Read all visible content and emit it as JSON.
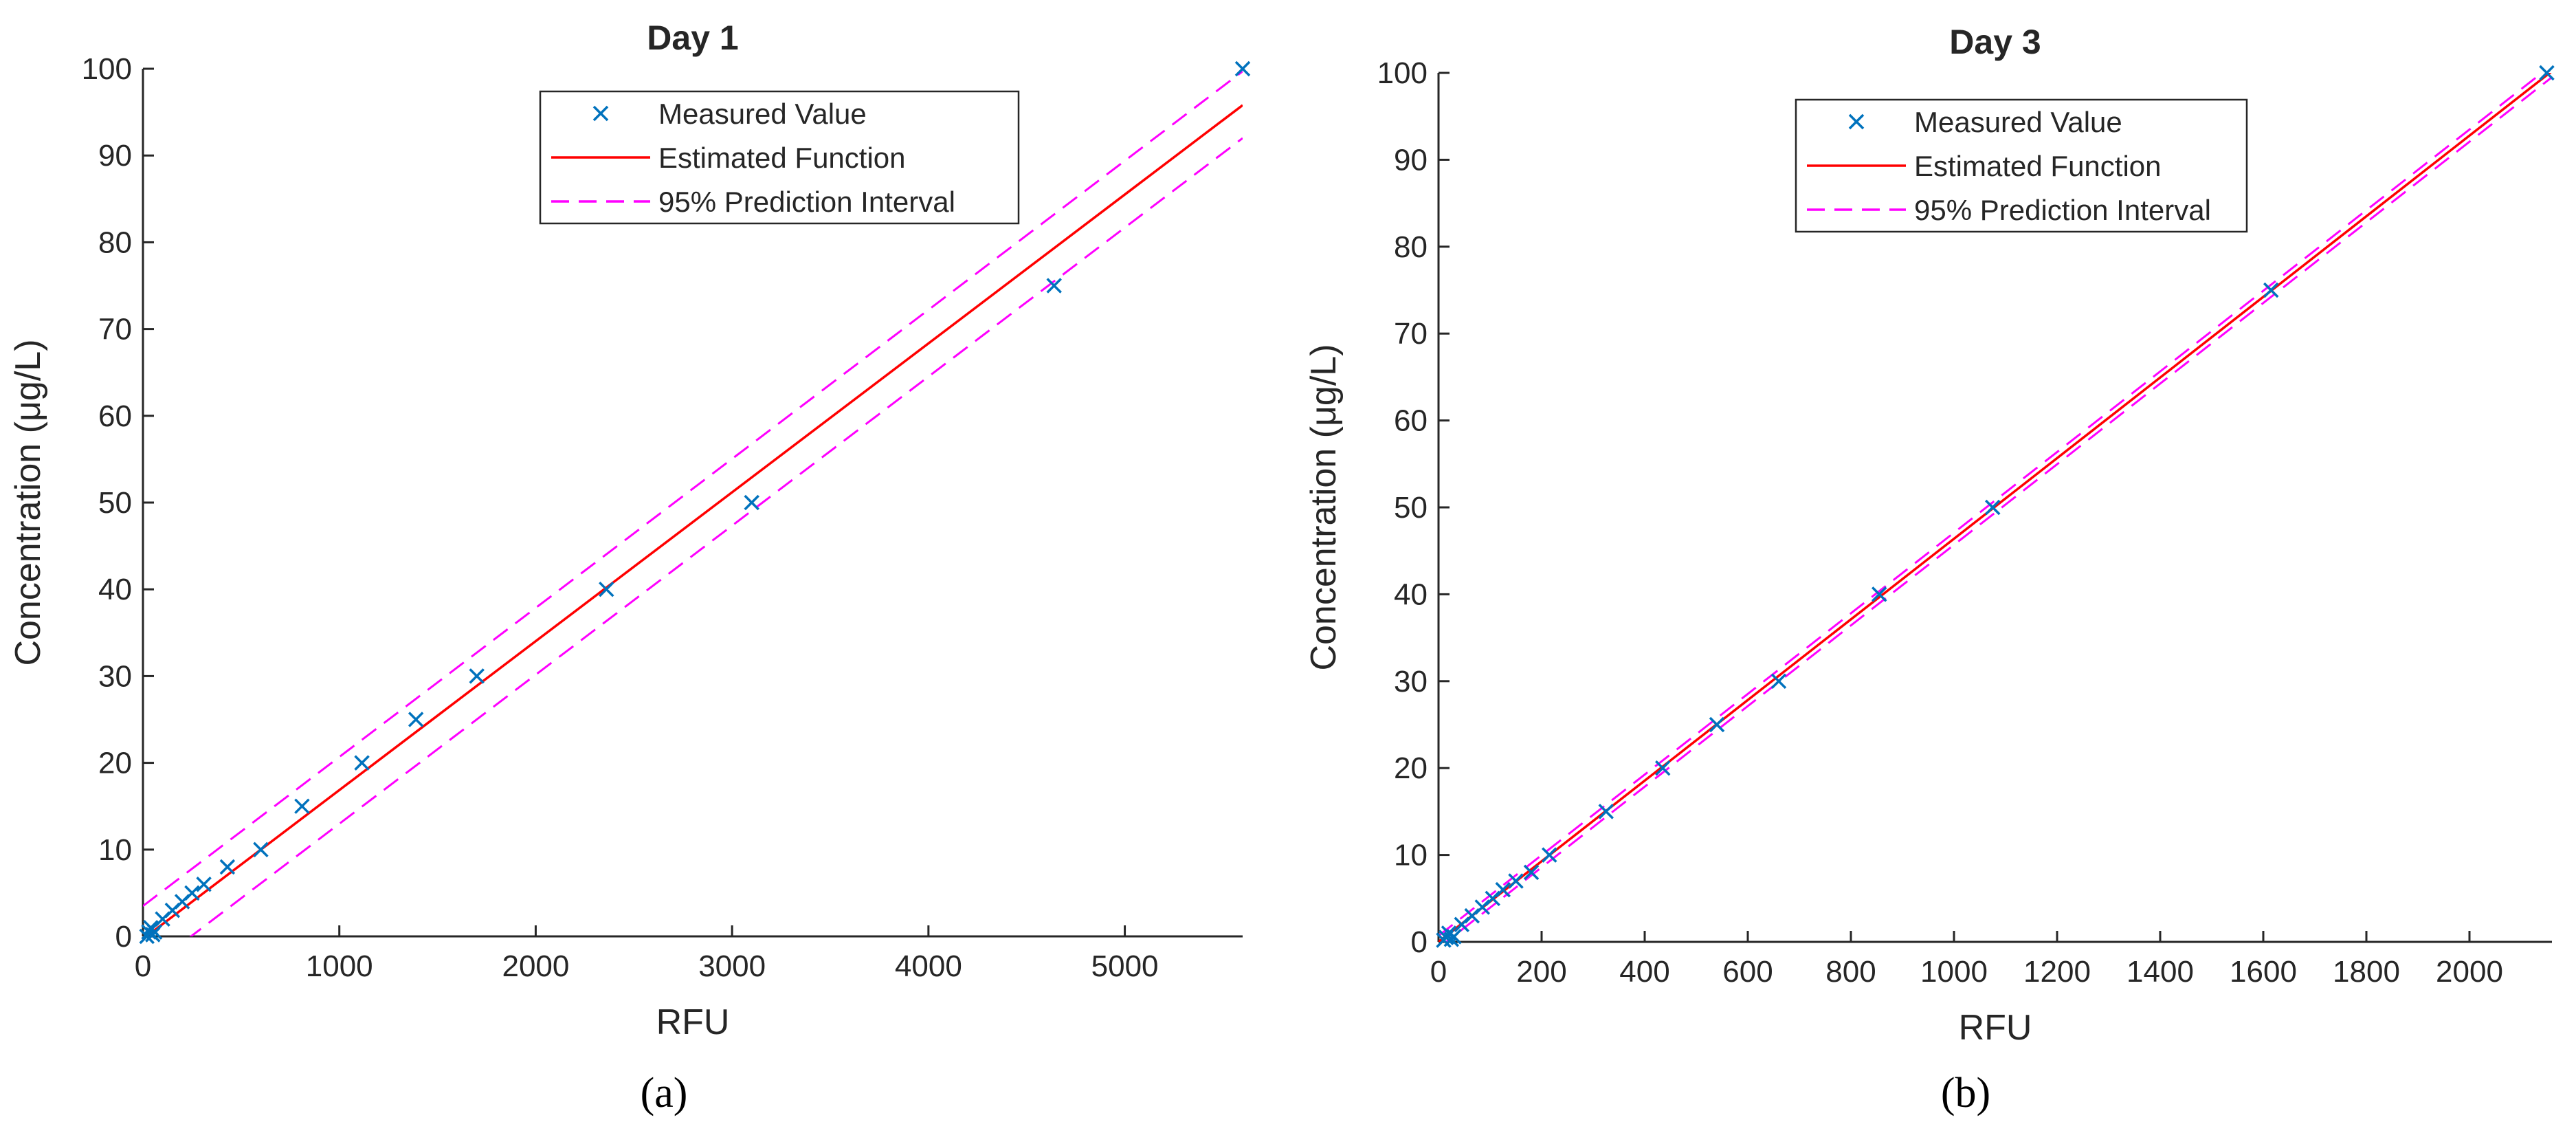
{
  "chart_data": [
    {
      "type": "scatter",
      "panel_label": "(a)",
      "title": "Day 1",
      "xlabel": "RFU",
      "ylabel": "Concentration (μg/L)",
      "xlim": [
        0,
        5600
      ],
      "ylim": [
        0,
        100
      ],
      "xticks": [
        0,
        1000,
        2000,
        3000,
        4000,
        5000
      ],
      "yticks": [
        0,
        10,
        20,
        30,
        40,
        50,
        60,
        70,
        80,
        90,
        100
      ],
      "legend_position": "top-center",
      "grid": false,
      "measured": {
        "name": "Measured Value",
        "color": "#0072BD",
        "x": [
          20,
          30,
          40,
          50,
          60,
          100,
          150,
          200,
          250,
          310,
          430,
          600,
          810,
          1115,
          1390,
          1700,
          2360,
          3100,
          4640,
          5600
        ],
        "y": [
          0,
          0.5,
          1,
          0.2,
          0.5,
          2,
          3,
          4,
          5,
          6,
          8,
          10,
          15,
          20,
          25,
          30,
          40,
          50,
          75,
          100
        ]
      },
      "estimated": {
        "name": "Estimated Function",
        "color": "#FF0000",
        "x": [
          0,
          5600
        ],
        "y": [
          -0.3,
          95.8
        ]
      },
      "prediction_interval": {
        "name": "95% Prediction Interval",
        "color": "#FF00FF",
        "upper": {
          "x": [
            0,
            5600
          ],
          "y": [
            3.5,
            99.7
          ]
        },
        "lower": {
          "x": [
            0,
            5600
          ],
          "y": [
            -4.2,
            92.0
          ]
        }
      }
    },
    {
      "type": "scatter",
      "panel_label": "(b)",
      "title": "Day 3",
      "xlabel": "RFU",
      "ylabel": "Concentration (μg/L)",
      "xlim": [
        0,
        2160
      ],
      "ylim": [
        0,
        100
      ],
      "xticks": [
        0,
        200,
        400,
        600,
        800,
        1000,
        1200,
        1400,
        1600,
        1800,
        2000
      ],
      "yticks": [
        0,
        10,
        20,
        30,
        40,
        50,
        60,
        70,
        80,
        90,
        100
      ],
      "legend_position": "top-center",
      "grid": false,
      "measured": {
        "name": "Measured Value",
        "color": "#0072BD",
        "x": [
          10,
          15,
          20,
          25,
          30,
          45,
          65,
          85,
          105,
          125,
          150,
          180,
          215,
          325,
          435,
          540,
          660,
          855,
          1075,
          1615,
          2150
        ],
        "y": [
          0.2,
          0.5,
          1,
          0.3,
          0.6,
          2,
          3,
          4,
          5,
          6,
          7,
          8,
          10,
          15,
          20,
          25,
          30,
          40,
          50,
          75,
          100
        ]
      },
      "estimated": {
        "name": "Estimated Function",
        "color": "#FF0000",
        "x": [
          0,
          2160
        ],
        "y": [
          0,
          100.2
        ]
      },
      "prediction_interval": {
        "name": "95% Prediction Interval",
        "color": "#FF00FF",
        "upper": {
          "x": [
            0,
            2160
          ],
          "y": [
            0.7,
            100.9
          ]
        },
        "lower": {
          "x": [
            0,
            2160
          ],
          "y": [
            -0.7,
            99.5
          ]
        }
      }
    }
  ]
}
